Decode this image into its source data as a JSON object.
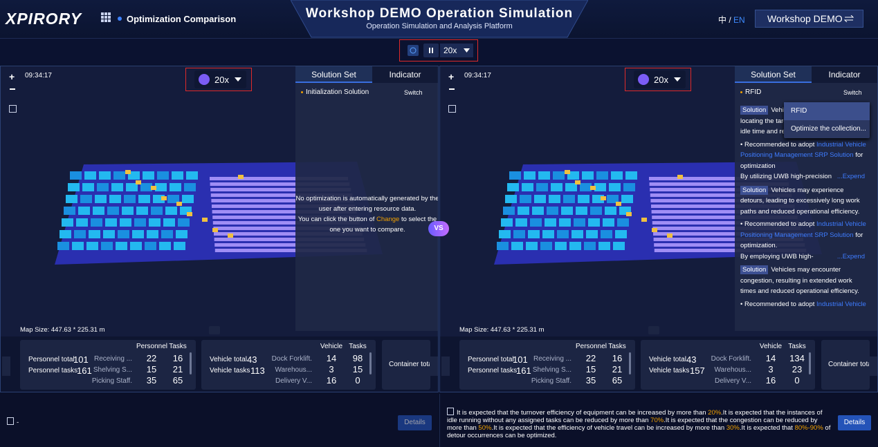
{
  "header": {
    "logo": "XPIRORY",
    "page_name": "Optimization Comparison",
    "title": "Workshop DEMO Operation Simulation",
    "subtitle": "Operation Simulation and Analysis Platform",
    "lang_zh": "中",
    "lang_sep": "/",
    "lang_en": "EN",
    "project": "Workshop DEMO"
  },
  "sync_control": {
    "speed": "20x"
  },
  "vs": "VS",
  "panels": [
    {
      "time": "09:34:17",
      "speed": "20x",
      "tabs": [
        "Solution Set",
        "Indicator"
      ],
      "solution": "Initialization Solution",
      "switch": "Switch",
      "map_size": "Map Size: 447.63 * 225.31 m",
      "notice": [
        "No optimization is automatically generated by the user after entering resource data.",
        "You can click the button of",
        "Change",
        "to select the one you want to compare."
      ],
      "personnel": {
        "total_label": "Personnel total",
        "total": 101,
        "tasks_label": "Personnel tasks",
        "tasks": 161,
        "headers": [
          "Personnel",
          "Tasks"
        ],
        "rows": [
          [
            "Receiving ...",
            22,
            16
          ],
          [
            "Shelving S...",
            15,
            21
          ],
          [
            "Picking Staff.",
            35,
            65
          ]
        ]
      },
      "vehicles": {
        "total_label": "Vehicle total",
        "total": 43,
        "tasks_label": "Vehicle tasks",
        "tasks": 113,
        "headers": [
          "Vehicle",
          "Tasks"
        ],
        "rows": [
          [
            "Dock Forklift.",
            14,
            98
          ],
          [
            "Warehous...",
            3,
            15
          ],
          [
            "Delivery V...",
            16,
            0
          ]
        ]
      },
      "container": "Container tota",
      "footer": {
        "summary": [
          "-"
        ],
        "details": "Details"
      }
    },
    {
      "time": "09:34:17",
      "speed": "20x",
      "tabs": [
        "Solution Set",
        "Indicator"
      ],
      "solution": "RFID",
      "switch": "Switch",
      "map_size": "Map Size: 447.63 * 225.31 m",
      "dropdown": [
        "RFID",
        "Optimize the collection..."
      ],
      "solutions": [
        {
          "tag": "Solution",
          "text": "Vehicles may spend a long time locating the targets, resulting in prolonged idle time and reduced operational efficiency.",
          "recommend": "Recommended to adopt",
          "link": "Industrial Vehicle Positioning Management SRP Solution",
          "suffix": "for optimization",
          "detail": "By utilizing UWB high-precision",
          "expand": "...Expend"
        },
        {
          "tag": "Solution",
          "text": "Vehicles may experience detours, leading to excessively long work paths and reduced operational efficiency.",
          "recommend": "Recommended to adopt",
          "link": "Industrial Vehicle Positioning Management SRP Solution",
          "suffix": "for optimization.",
          "detail": "By employing UWB high-",
          "expand": "...Expend"
        },
        {
          "tag": "Solution",
          "text": "Vehicles may encounter congestion, resulting in extended work times and reduced operational efficiency.",
          "recommend": "Recommended to adopt",
          "link": "Industrial Vehicle",
          "suffix": "",
          "detail": "",
          "expand": ""
        }
      ],
      "personnel": {
        "total_label": "Personnel total",
        "total": 101,
        "tasks_label": "Personnel tasks",
        "tasks": 161,
        "headers": [
          "Personnel",
          "Tasks"
        ],
        "rows": [
          [
            "Receiving ...",
            22,
            16
          ],
          [
            "Shelving S...",
            15,
            21
          ],
          [
            "Picking Staff.",
            35,
            65
          ]
        ]
      },
      "vehicles": {
        "total_label": "Vehicle total",
        "total": 43,
        "tasks_label": "Vehicle tasks",
        "tasks": 157,
        "headers": [
          "Vehicle",
          "Tasks"
        ],
        "rows": [
          [
            "Dock Forklift.",
            14,
            134
          ],
          [
            "Warehous...",
            3,
            23
          ],
          [
            "Delivery V...",
            16,
            0
          ]
        ]
      },
      "container": "Container tota",
      "footer": {
        "summary": [
          "It is expected that the turnover efficiency of equipment can be increased by more than ",
          "20%",
          ".It is expected that the instances of idle running without any assigned tasks can be reduced by more than ",
          "70%",
          ".It is expected that the congestion can be reduced by more than ",
          "50%",
          ".It is expected that the efficiency of vehicle travel can be increased by more than ",
          "30%",
          ".It is expected that ",
          "80%-90%",
          " of detour occurrences can be optimized."
        ],
        "details": "Details"
      }
    }
  ]
}
